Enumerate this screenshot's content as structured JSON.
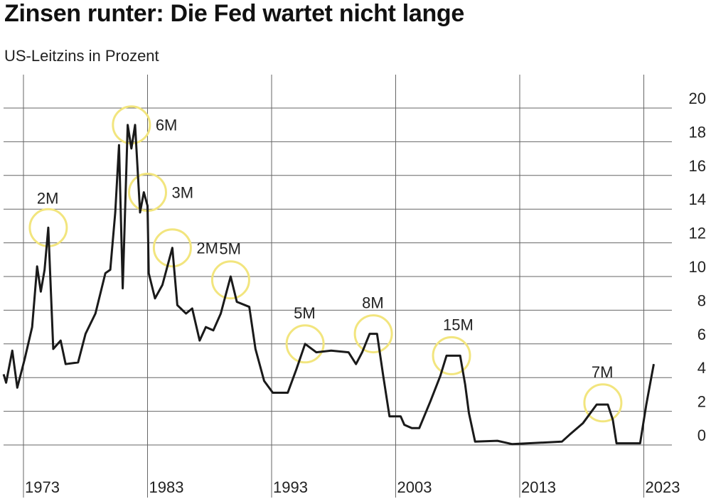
{
  "chart_data": {
    "type": "line",
    "title": "Zinsen runter: Die Fed wartet nicht lange",
    "ylabel": "US-Leitzins in Prozent",
    "xlabel": "",
    "ylim": [
      0,
      20
    ],
    "xlim": [
      1971.4,
      2024.5
    ],
    "grid": true,
    "y_ticks": [
      0,
      2,
      4,
      6,
      8,
      10,
      12,
      14,
      16,
      18,
      20
    ],
    "x_ticks": [
      1973,
      1983,
      1993,
      2003,
      2013,
      2023
    ],
    "series": [
      {
        "name": "US-Leitzins",
        "x": [
          1971.4,
          1971.6,
          1972.1,
          1972.5,
          1973.1,
          1973.7,
          1974.1,
          1974.4,
          1974.7,
          1975.0,
          1975.4,
          1976.0,
          1976.4,
          1977.4,
          1978.0,
          1978.8,
          1979.6,
          1980.0,
          1980.4,
          1980.7,
          1981.0,
          1981.4,
          1981.7,
          1982.0,
          1982.4,
          1982.7,
          1983.0,
          1983.1,
          1983.6,
          1984.2,
          1985.0,
          1985.4,
          1986.1,
          1986.6,
          1987.2,
          1987.7,
          1988.3,
          1988.9,
          1989.3,
          1989.7,
          1990.2,
          1991.2,
          1991.7,
          1992.4,
          1993.1,
          1994.3,
          1995.0,
          1995.7,
          1996.6,
          1997.8,
          1999.2,
          1999.8,
          2000.3,
          2000.9,
          2001.5,
          2002.0,
          2002.5,
          2003.4,
          2003.7,
          2004.3,
          2004.9,
          2005.8,
          2006.6,
          2007.1,
          2008.2,
          2008.6,
          2008.9,
          2009.4,
          2011.2,
          2012.4,
          2016.4,
          2017.0,
          2018.1,
          2019.2,
          2020.1,
          2020.5,
          2020.8,
          2022.7,
          2023.2,
          2023.8
        ],
        "values": [
          4.2,
          3.7,
          5.6,
          3.4,
          5.1,
          7.0,
          10.6,
          9.1,
          10.4,
          12.9,
          5.7,
          6.2,
          4.8,
          4.9,
          6.6,
          7.8,
          10.2,
          10.4,
          13.8,
          17.8,
          9.3,
          19.0,
          17.6,
          19.0,
          13.8,
          15.0,
          14.2,
          10.2,
          8.7,
          9.5,
          11.7,
          8.3,
          7.8,
          8.1,
          6.2,
          7.0,
          6.8,
          7.8,
          8.9,
          10.0,
          8.5,
          8.2,
          5.7,
          3.8,
          3.1,
          3.1,
          4.5,
          6.0,
          5.5,
          5.6,
          5.5,
          4.8,
          5.5,
          6.6,
          6.6,
          4.1,
          1.7,
          1.7,
          1.2,
          1.0,
          1.0,
          2.6,
          4.1,
          5.3,
          5.3,
          3.6,
          1.9,
          0.2,
          0.25,
          0.05,
          0.2,
          0.6,
          1.3,
          2.4,
          2.4,
          1.5,
          0.1,
          0.1,
          2.4,
          4.8
        ]
      }
    ],
    "annotations": [
      {
        "label": "2M",
        "x": 1975.0,
        "y": 12.9
      },
      {
        "label": "6M",
        "x": 1981.7,
        "y": 19.0
      },
      {
        "label": "3M",
        "x": 1983.0,
        "y": 15.0
      },
      {
        "label": "2M",
        "x": 1985.0,
        "y": 11.7
      },
      {
        "label": "5M",
        "x": 1989.7,
        "y": 9.8
      },
      {
        "label": "5M",
        "x": 1995.7,
        "y": 6.0
      },
      {
        "label": "8M",
        "x": 2001.2,
        "y": 6.6
      },
      {
        "label": "15M",
        "x": 2007.5,
        "y": 5.3
      },
      {
        "label": "7M",
        "x": 2019.7,
        "y": 2.5
      }
    ],
    "colors": {
      "line": "#1a1a1a",
      "grid": "#666666",
      "circle": "#f2e57e"
    }
  }
}
